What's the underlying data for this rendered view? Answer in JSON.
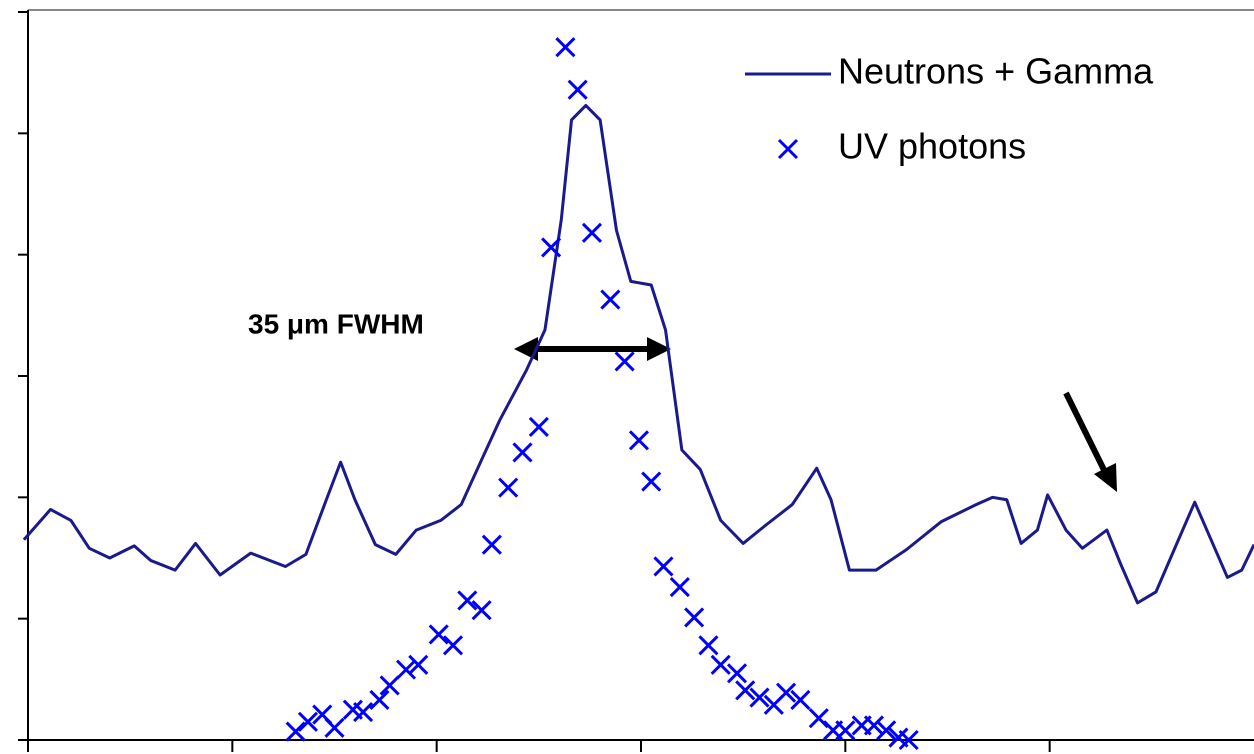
{
  "chart_data": {
    "type": "line",
    "annotation": "35 μm FWHM",
    "legend": "upper right",
    "grid": false,
    "xlim": [
      0,
      6
    ],
    "xticks": [
      0,
      1,
      2,
      3,
      4,
      5
    ],
    "ylim": [
      0,
      6
    ],
    "yticks": [
      0,
      1,
      2,
      3,
      4,
      5,
      6
    ],
    "series": [
      {
        "name": "Neutrons + Gamma",
        "type": "line",
        "color": "#1a1a8c",
        "x": [
          -0.02,
          0.11,
          0.21,
          0.3,
          0.4,
          0.52,
          0.6,
          0.72,
          0.82,
          0.94,
          1.09,
          1.26,
          1.36,
          1.46,
          1.53,
          1.6,
          1.7,
          1.8,
          1.9,
          2.02,
          2.12,
          2.22,
          2.31,
          2.44,
          2.53,
          2.61,
          2.66,
          2.73,
          2.8,
          2.88,
          2.95,
          3.05,
          3.12,
          3.2,
          3.29,
          3.39,
          3.5,
          3.61,
          3.74,
          3.86,
          3.93,
          4.02,
          4.15,
          4.3,
          4.47,
          4.64,
          4.72,
          4.79,
          4.86,
          4.94,
          4.99,
          5.08,
          5.16,
          5.28,
          5.35,
          5.43,
          5.52,
          5.62,
          5.71,
          5.79,
          5.87,
          5.94,
          6.0
        ],
        "values": [
          1.65,
          1.9,
          1.81,
          1.58,
          1.5,
          1.6,
          1.48,
          1.4,
          1.62,
          1.36,
          1.54,
          1.43,
          1.53,
          1.98,
          2.29,
          1.98,
          1.61,
          1.53,
          1.73,
          1.81,
          1.94,
          2.31,
          2.64,
          3.05,
          3.38,
          4.29,
          5.11,
          5.23,
          5.11,
          4.2,
          3.78,
          3.75,
          3.38,
          2.39,
          2.23,
          1.81,
          1.62,
          1.77,
          1.94,
          2.24,
          1.98,
          1.4,
          1.4,
          1.57,
          1.8,
          1.94,
          2.0,
          1.98,
          1.62,
          1.73,
          2.02,
          1.73,
          1.58,
          1.73,
          1.44,
          1.13,
          1.22,
          1.61,
          1.96,
          1.65,
          1.34,
          1.4,
          1.61
        ]
      },
      {
        "name": "UV photons",
        "type": "scatter",
        "color": "#0000ff",
        "x": [
          2.63,
          2.69,
          2.76,
          2.56,
          2.85,
          2.92,
          2.5,
          2.42,
          2.99,
          3.05,
          2.35,
          2.27,
          3.11,
          3.19,
          2.15,
          2.22,
          3.26,
          3.33,
          2.01,
          2.08,
          3.39,
          1.91,
          1.85,
          1.77,
          3.47,
          3.51,
          1.72,
          1.64,
          1.59,
          1.44,
          1.37,
          1.31,
          1.5,
          3.58,
          3.65,
          3.71,
          3.78,
          3.87,
          3.94,
          4.0,
          4.08,
          4.14,
          4.2,
          4.26,
          4.31
        ],
        "values": [
          5.71,
          5.36,
          4.18,
          4.06,
          3.63,
          3.12,
          2.58,
          2.37,
          2.47,
          2.13,
          2.08,
          1.61,
          1.43,
          1.26,
          1.15,
          1.07,
          1.01,
          0.78,
          0.87,
          0.78,
          0.62,
          0.62,
          0.58,
          0.45,
          0.55,
          0.41,
          0.33,
          0.23,
          0.25,
          0.21,
          0.15,
          0.07,
          0.1,
          0.35,
          0.29,
          0.39,
          0.33,
          0.18,
          0.08,
          0.08,
          0.12,
          0.12,
          0.08,
          0.02,
          0.0
        ]
      }
    ]
  }
}
